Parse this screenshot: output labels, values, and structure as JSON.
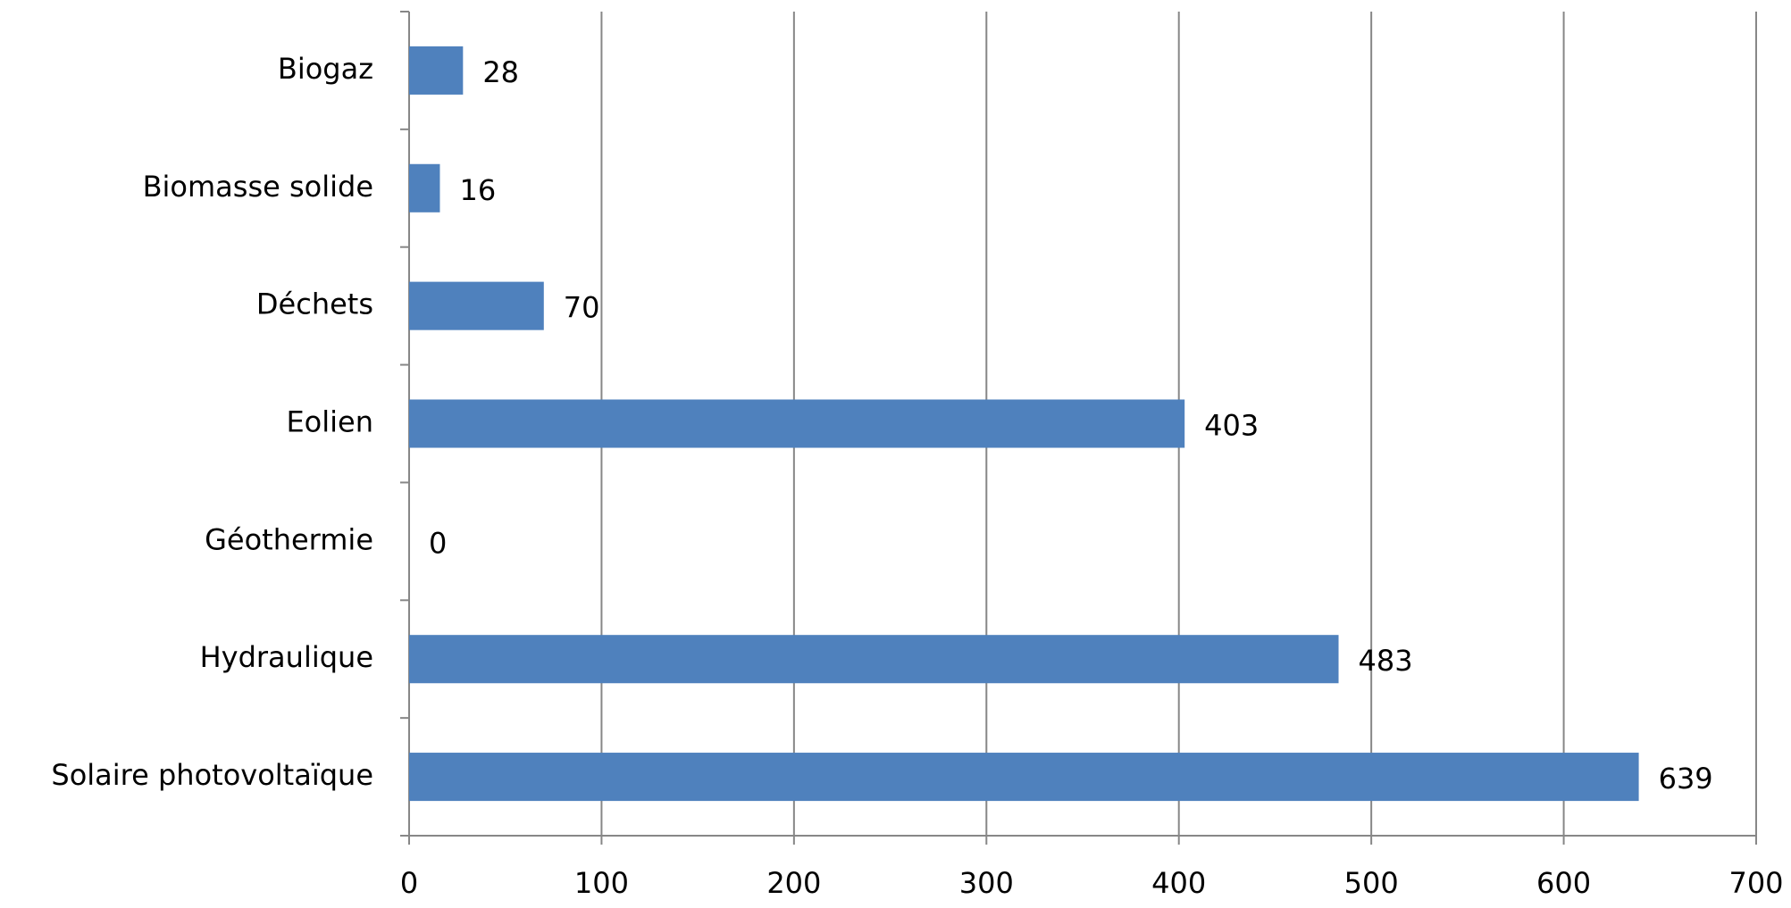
{
  "chart_data": {
    "type": "bar",
    "orientation": "horizontal",
    "categories": [
      "Biogaz",
      "Biomasse solide",
      "Déchets",
      "Eolien",
      "Géothermie",
      "Hydraulique",
      "Solaire photovoltaïque"
    ],
    "values": [
      28,
      16,
      70,
      403,
      0,
      483,
      639
    ],
    "color": "#4f81bd",
    "xlim": [
      0,
      700
    ],
    "xticks": [
      0,
      100,
      200,
      300,
      400,
      500,
      600,
      700
    ],
    "grid": true
  }
}
